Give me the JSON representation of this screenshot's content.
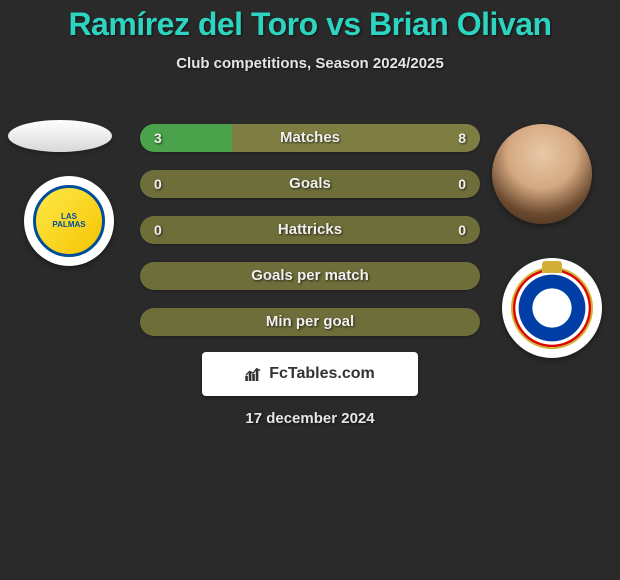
{
  "title": "Ramírez del Toro vs Brian Olivan",
  "subtitle": "Club competitions, Season 2024/2025",
  "date": "17 december 2024",
  "logo_text": "FcTables.com",
  "colors": {
    "background": "#2a2a2a",
    "title": "#2dd4bf",
    "text": "#e5e5e5",
    "bar_left": "#4aa34a",
    "bar_right": "#7a7a40",
    "bar_empty": "#6e6e3a"
  },
  "bars": [
    {
      "label": "Matches",
      "left_value": "3",
      "right_value": "8",
      "left_pct": 27,
      "right_pct": 73,
      "left_color": "#4aa34a",
      "right_color": "#7e7e42"
    },
    {
      "label": "Goals",
      "left_value": "0",
      "right_value": "0",
      "left_pct": 50,
      "right_pct": 50,
      "left_color": "#6e6e3a",
      "right_color": "#6e6e3a"
    },
    {
      "label": "Hattricks",
      "left_value": "0",
      "right_value": "0",
      "left_pct": 50,
      "right_pct": 50,
      "left_color": "#6e6e3a",
      "right_color": "#6e6e3a"
    },
    {
      "label": "Goals per match",
      "left_value": "",
      "right_value": "",
      "left_pct": 50,
      "right_pct": 50,
      "left_color": "#6e6e3a",
      "right_color": "#6e6e3a"
    },
    {
      "label": "Min per goal",
      "left_value": "",
      "right_value": "",
      "left_pct": 50,
      "right_pct": 50,
      "left_color": "#6e6e3a",
      "right_color": "#6e6e3a"
    }
  ]
}
